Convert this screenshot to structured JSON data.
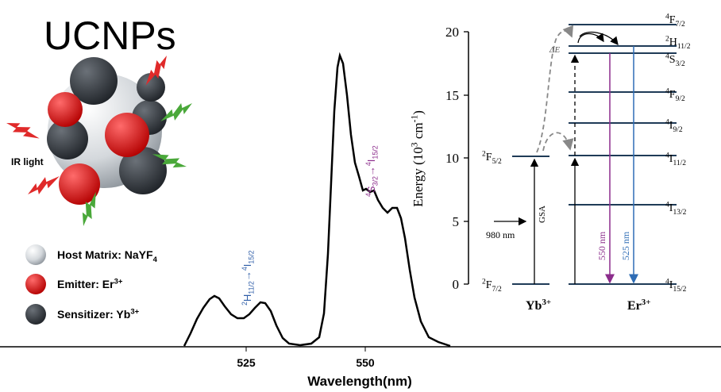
{
  "title": "UCNPs",
  "illustration": {
    "label": "IR light"
  },
  "legend": [
    {
      "text": "Host Matrix: NaYF",
      "sub": "4"
    },
    {
      "text": "Emitter: Er",
      "sup": "3+"
    },
    {
      "text": "Sensitizer: Yb",
      "sup": "3+"
    }
  ],
  "spectrum": {
    "xticks": [
      "525",
      "550"
    ],
    "xlabel": "Wavelength(nm)",
    "annotations": [
      {
        "sup1": "2",
        "main1": "H",
        "sub1": "11/2",
        "arrow": "→",
        "sup2": "4",
        "main2": "I",
        "sub2": "15/2"
      },
      {
        "sup1": "4",
        "main1": "S",
        "sub1": "3/2",
        "arrow": "→",
        "sup2": "4",
        "main2": "I",
        "sub2": "15/2"
      }
    ]
  },
  "energy_diagram": {
    "ylabel": {
      "text": "Energy (10",
      "sup": "3",
      "text2": " cm",
      "sup2": "-1",
      "text3": ")"
    },
    "yticks": [
      "0",
      "5",
      "10",
      "15",
      "20"
    ],
    "yb_levels": [
      {
        "sup": "2",
        "main": "F",
        "sub": "5/2"
      },
      {
        "sup": "2",
        "main": "F",
        "sub": "7/2"
      }
    ],
    "er_levels": [
      {
        "sup": "4",
        "main": "F",
        "sub": "7/2"
      },
      {
        "sup": "2",
        "main": "H",
        "sub": "11/2"
      },
      {
        "sup": "4",
        "main": "S",
        "sub": "3/2"
      },
      {
        "sup": "4",
        "main": "F",
        "sub": "9/2"
      },
      {
        "sup": "4",
        "main": "I",
        "sub": "9/2"
      },
      {
        "sup": "4",
        "main": "I",
        "sub": "11/2"
      },
      {
        "sup": "4",
        "main": "I",
        "sub": "13/2"
      },
      {
        "sup": "4",
        "main": "I",
        "sub": "15/2"
      }
    ],
    "ions": [
      {
        "main": "Yb",
        "sup": "3+"
      },
      {
        "main": "Er",
        "sup": "3+"
      }
    ],
    "labels": {
      "excitation": "980 nm",
      "gsa": "GSA",
      "delta": "ΔE",
      "emission_550": "550 nm",
      "emission_525": "525 nm"
    }
  }
}
